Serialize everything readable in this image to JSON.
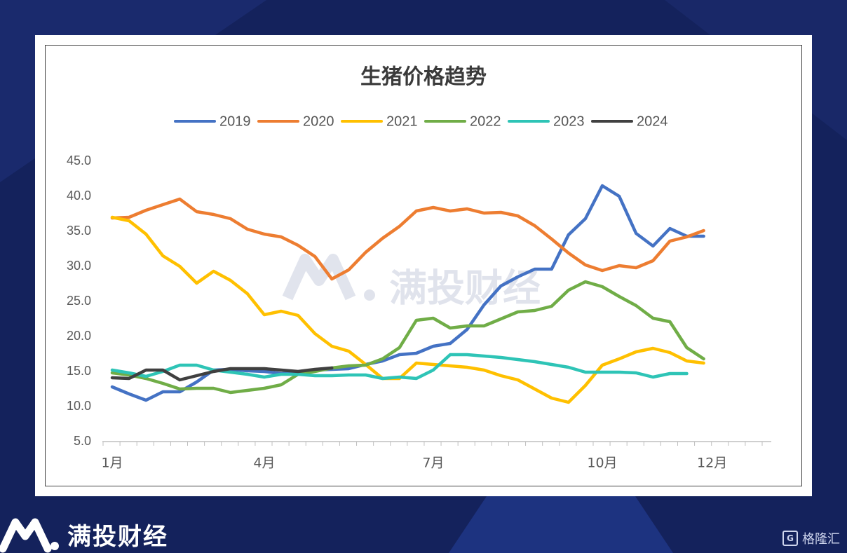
{
  "brand": {
    "name": "满投财经",
    "logo_icon": "ma-logo-icon",
    "watermark": "满投财经"
  },
  "corner_badge": {
    "text": "格隆汇",
    "icon": "glh-g-icon"
  },
  "colors": {
    "background": "#14225c"
  },
  "chart_data": {
    "type": "line",
    "title": "生猪价格趋势",
    "legend_position": "top",
    "grid": false,
    "ylim": [
      5,
      45
    ],
    "yticks": [
      "5.0",
      "10.0",
      "15.0",
      "20.0",
      "25.0",
      "30.0",
      "35.0",
      "40.0",
      "45.0"
    ],
    "xlim": [
      1,
      40
    ],
    "xticks": [
      {
        "x": 1,
        "label": "1月"
      },
      {
        "x": 10,
        "label": "4月"
      },
      {
        "x": 20,
        "label": "7月"
      },
      {
        "x": 30,
        "label": "10月"
      },
      {
        "x": 36.5,
        "label": "12月"
      }
    ],
    "series": [
      {
        "name": "2019",
        "color": "#4472c4",
        "values": [
          12.8,
          11.8,
          10.9,
          12.1,
          12.1,
          13.5,
          15.2,
          15.3,
          15.1,
          15.0,
          14.7,
          14.8,
          15.2,
          15.3,
          15.4,
          16.0,
          16.5,
          17.4,
          17.6,
          18.6,
          19.0,
          21.0,
          24.5,
          27.2,
          28.5,
          29.6,
          29.6,
          34.5,
          36.8,
          41.5,
          40.0,
          34.7,
          32.9,
          35.4,
          34.3,
          34.3
        ]
      },
      {
        "name": "2020",
        "color": "#ed7d31",
        "values": [
          36.9,
          37.0,
          38.0,
          38.8,
          39.6,
          37.8,
          37.4,
          36.8,
          35.3,
          34.6,
          34.2,
          33.0,
          31.4,
          28.2,
          29.5,
          32.0,
          34.0,
          35.7,
          37.9,
          38.4,
          37.9,
          38.2,
          37.6,
          37.7,
          37.2,
          35.8,
          33.9,
          31.9,
          30.2,
          29.4,
          30.1,
          29.8,
          30.8,
          33.6,
          34.2,
          35.1
        ]
      },
      {
        "name": "2021",
        "color": "#ffc000",
        "values": [
          37.0,
          36.5,
          34.6,
          31.5,
          30.0,
          27.6,
          29.3,
          28.0,
          26.1,
          23.1,
          23.6,
          23.0,
          20.4,
          18.6,
          17.9,
          16.0,
          14.0,
          14.0,
          16.2,
          16.0,
          15.8,
          15.6,
          15.2,
          14.4,
          13.8,
          12.5,
          11.2,
          10.6,
          13.0,
          15.9,
          16.8,
          17.8,
          18.3,
          17.7,
          16.5,
          16.2
        ]
      },
      {
        "name": "2022",
        "color": "#70ad47",
        "values": [
          14.8,
          14.5,
          14.0,
          13.3,
          12.5,
          12.6,
          12.6,
          12.0,
          12.3,
          12.6,
          13.1,
          14.6,
          15.0,
          15.5,
          15.8,
          15.9,
          16.8,
          18.4,
          22.3,
          22.6,
          21.2,
          21.5,
          21.5,
          22.5,
          23.5,
          23.7,
          24.3,
          26.6,
          27.8,
          27.1,
          25.7,
          24.4,
          22.6,
          22.1,
          18.4,
          16.8
        ]
      },
      {
        "name": "2023",
        "color": "#2ec4b6",
        "values": [
          15.2,
          14.8,
          14.3,
          15.0,
          15.9,
          15.9,
          15.2,
          14.9,
          14.6,
          14.2,
          14.6,
          14.6,
          14.4,
          14.4,
          14.5,
          14.5,
          14.0,
          14.2,
          14.0,
          15.2,
          17.4,
          17.4,
          17.2,
          17.0,
          16.7,
          16.4,
          16.0,
          15.6,
          14.9,
          14.9,
          14.9,
          14.8,
          14.2,
          14.7,
          14.7
        ]
      },
      {
        "name": "2024",
        "color": "#404040",
        "values": [
          14.1,
          14.0,
          15.2,
          15.2,
          13.8,
          14.4,
          15.0,
          15.4,
          15.4,
          15.4,
          15.2,
          15.0,
          15.3,
          15.5
        ]
      }
    ]
  }
}
